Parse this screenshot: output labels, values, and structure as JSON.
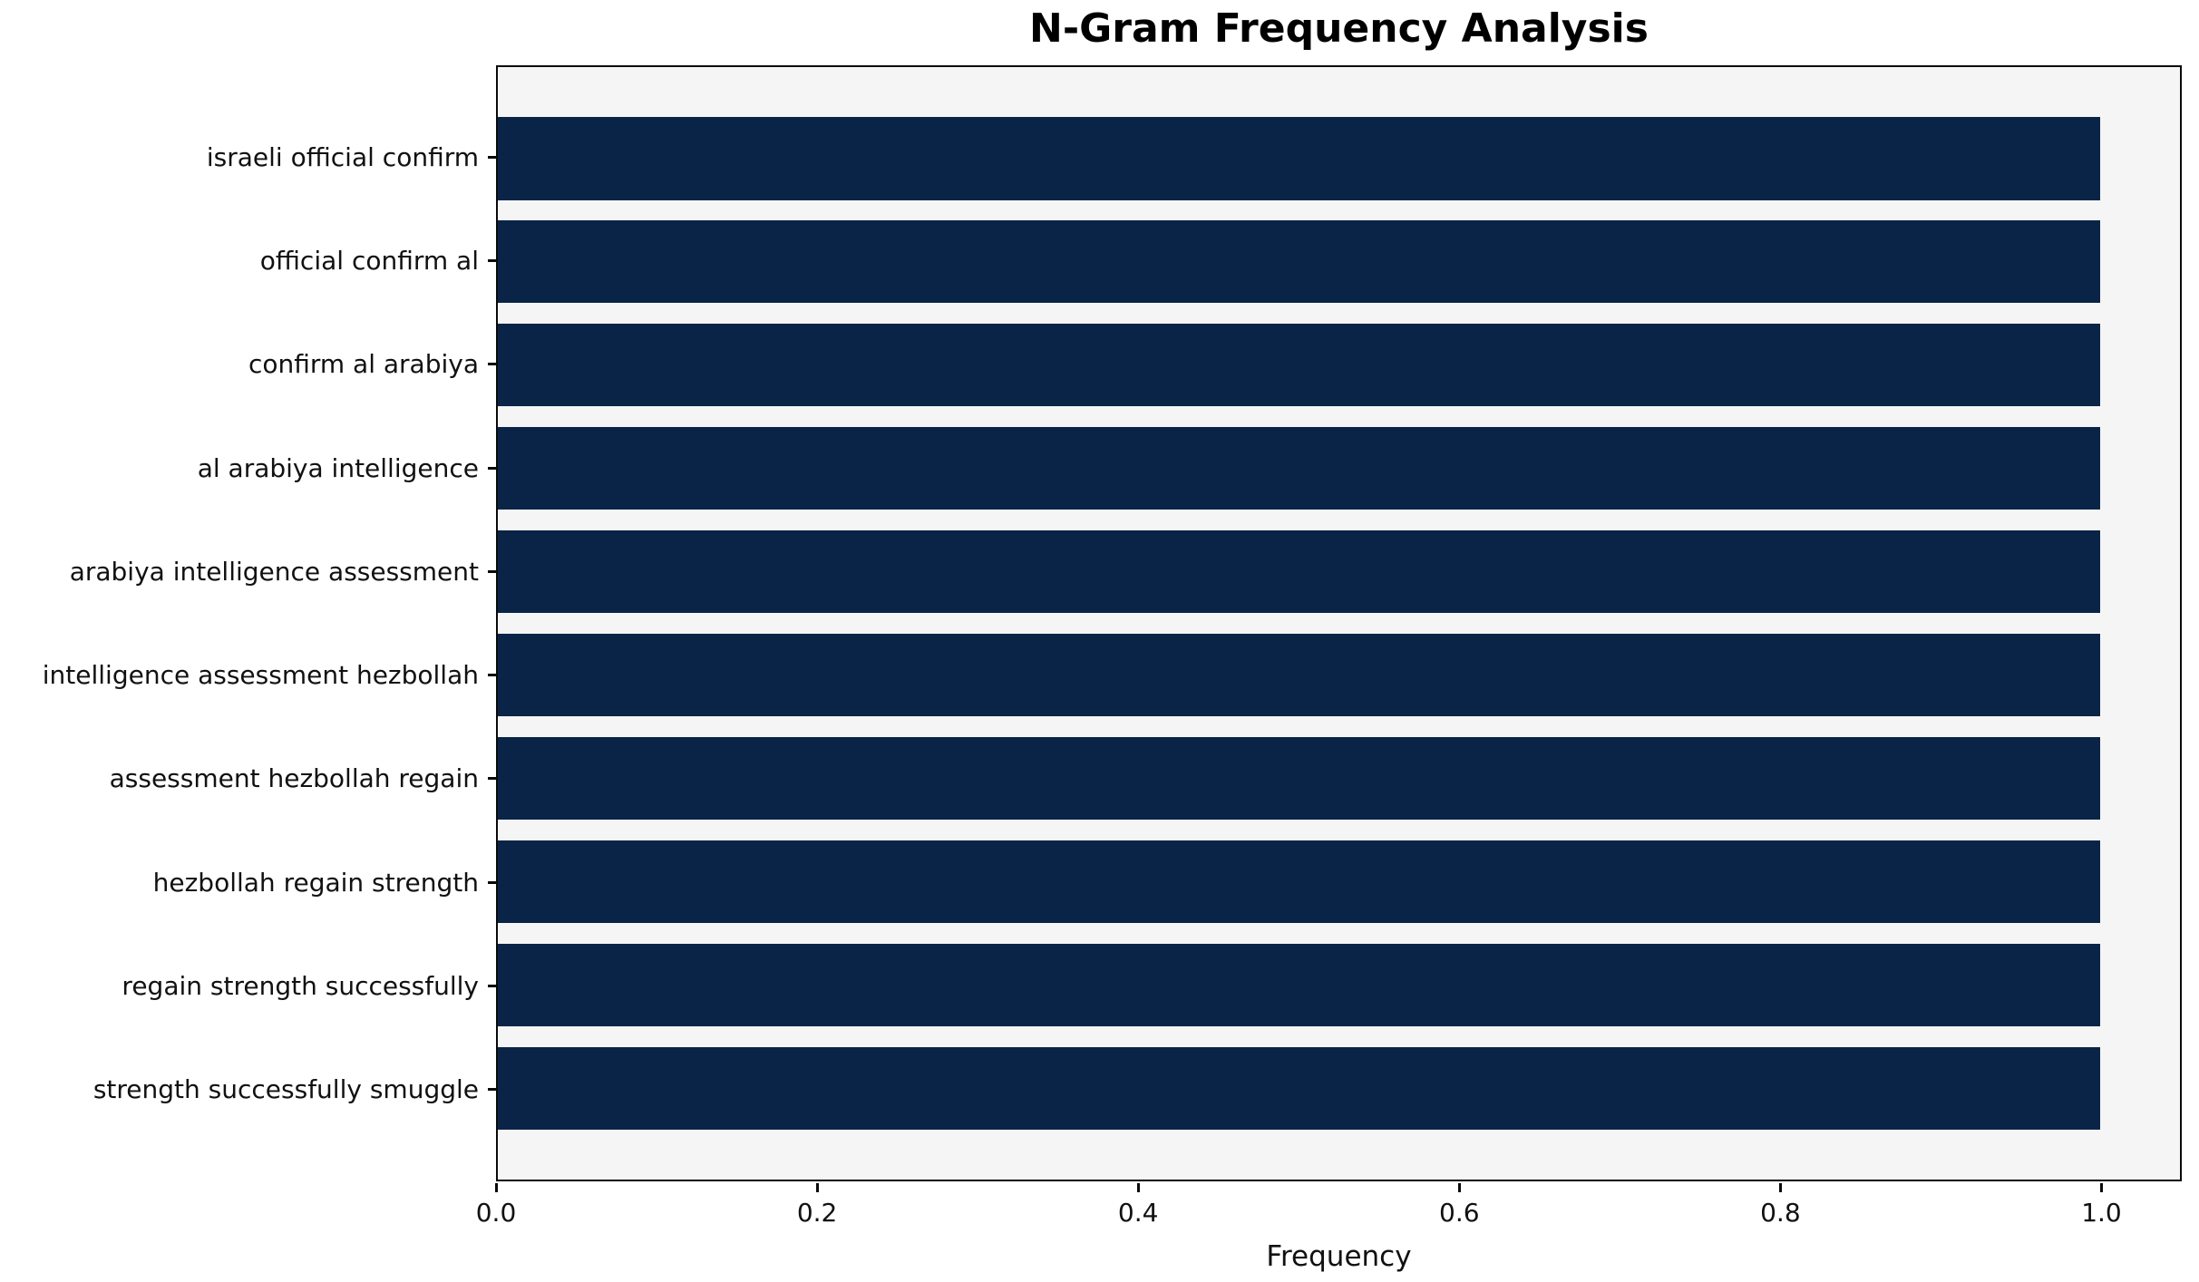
{
  "figure": {
    "background": "#ffffff",
    "plot_background": "#f5f5f5",
    "spine_color": "#0a0a0a"
  },
  "chart_data": {
    "type": "bar",
    "orientation": "horizontal",
    "title": "N-Gram Frequency Analysis",
    "xlabel": "Frequency",
    "ylabel": "",
    "categories": [
      "israeli official confirm",
      "official confirm al",
      "confirm al arabiya",
      "al arabiya intelligence",
      "arabiya intelligence assessment",
      "intelligence assessment hezbollah",
      "assessment hezbollah regain",
      "hezbollah regain strength",
      "regain strength successfully",
      "strength successfully smuggle"
    ],
    "values": [
      1.0,
      1.0,
      1.0,
      1.0,
      1.0,
      1.0,
      1.0,
      1.0,
      1.0,
      1.0
    ],
    "xticks": [
      "0.0",
      "0.2",
      "0.4",
      "0.6",
      "0.8",
      "1.0"
    ],
    "xtick_values": [
      0.0,
      0.2,
      0.4,
      0.6,
      0.8,
      1.0
    ],
    "xlim": [
      0.0,
      1.05
    ],
    "bar_color": "#0a2447",
    "grid": false,
    "legend": null
  }
}
